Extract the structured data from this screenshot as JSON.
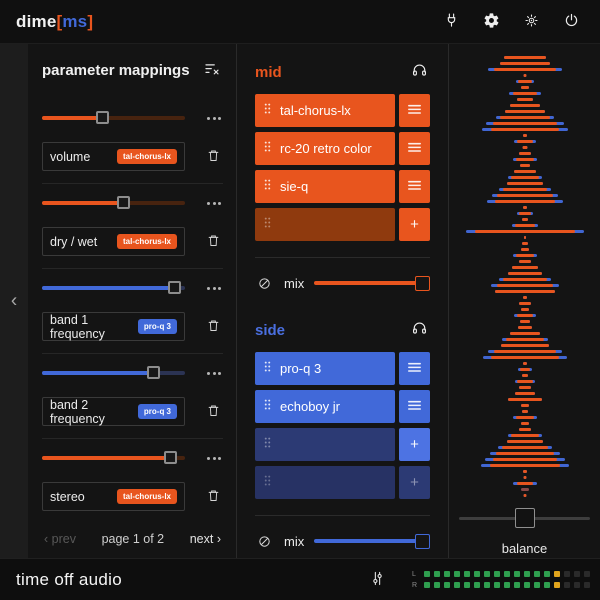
{
  "titlebar": {
    "brand_dime": "dime",
    "brand_bracket_open": "[",
    "brand_ms": "ms",
    "brand_bracket_close": "]",
    "icons": [
      "plug-icon",
      "settings-gear-icon",
      "brightness-icon",
      "power-icon"
    ]
  },
  "left_panel": {
    "title": "parameter mappings",
    "clear_icon": "clear-mappings-icon",
    "rows": [
      {
        "label": "volume",
        "badge": "tal-chorus-lx",
        "accent": "orange",
        "value_pct": 43
      },
      {
        "label": "dry / wet",
        "badge": "tal-chorus-lx",
        "accent": "orange",
        "value_pct": 57
      },
      {
        "label": "band 1 frequency",
        "badge": "pro-q 3",
        "accent": "blue",
        "value_pct": 93
      },
      {
        "label": "band 2 frequency",
        "badge": "pro-q 3",
        "accent": "blue",
        "value_pct": 78
      },
      {
        "label": "stereo",
        "badge": "tal-chorus-lx",
        "accent": "orange",
        "value_pct": 90
      }
    ],
    "pagination": {
      "prev_label": "prev",
      "page_label": "page 1 of 2",
      "next_label": "next"
    }
  },
  "mid_section": {
    "title": "mid",
    "headphones_icon": "headphones-icon",
    "slots": [
      {
        "label": "tal-chorus-lx",
        "filled": true
      },
      {
        "label": "rc-20 retro color",
        "filled": true
      },
      {
        "label": "sie-q",
        "filled": true
      },
      {
        "label": "",
        "filled": false,
        "plus_active": true
      }
    ],
    "mix": {
      "label": "mix",
      "value_pct": 100
    }
  },
  "side_section": {
    "title": "side",
    "headphones_icon": "headphones-icon",
    "slots": [
      {
        "label": "pro-q 3",
        "filled": true
      },
      {
        "label": "echoboy jr",
        "filled": true
      },
      {
        "label": "",
        "filled": false,
        "plus_active": true
      },
      {
        "label": "",
        "filled": false,
        "plus_active": false
      }
    ],
    "mix": {
      "label": "mix",
      "value_pct": 100
    }
  },
  "analyzer": {
    "balance_label": "balance",
    "balance_pct": 50,
    "bars": [
      [
        42,
        42
      ],
      [
        50,
        50
      ],
      [
        62,
        74
      ],
      [
        3,
        3
      ],
      [
        14,
        18
      ],
      [
        8,
        8
      ],
      [
        24,
        32
      ],
      [
        16,
        16
      ],
      [
        30,
        30
      ],
      [
        40,
        40
      ],
      [
        50,
        58
      ],
      [
        64,
        78
      ],
      [
        68,
        86
      ],
      [
        4,
        4
      ],
      [
        16,
        22
      ],
      [
        5,
        5
      ],
      [
        12,
        12
      ],
      [
        18,
        24
      ],
      [
        10,
        10
      ],
      [
        22,
        22
      ],
      [
        28,
        34
      ],
      [
        36,
        36
      ],
      [
        44,
        52
      ],
      [
        56,
        66
      ],
      [
        60,
        76
      ],
      [
        4,
        4
      ],
      [
        12,
        16
      ],
      [
        6,
        6
      ],
      [
        20,
        26
      ],
      [
        100,
        118
      ],
      [
        2,
        2
      ],
      [
        6,
        6
      ],
      [
        8,
        8
      ],
      [
        18,
        24
      ],
      [
        12,
        12
      ],
      [
        26,
        26
      ],
      [
        34,
        34
      ],
      [
        44,
        52
      ],
      [
        56,
        68
      ],
      [
        60,
        60
      ],
      [
        4,
        4
      ],
      [
        12,
        12
      ],
      [
        8,
        8
      ],
      [
        16,
        22
      ],
      [
        10,
        10
      ],
      [
        14,
        14
      ],
      [
        30,
        30
      ],
      [
        38,
        46
      ],
      [
        48,
        48
      ],
      [
        62,
        74
      ],
      [
        68,
        84
      ],
      [
        4,
        4
      ],
      [
        10,
        14
      ],
      [
        6,
        6
      ],
      [
        16,
        20
      ],
      [
        12,
        12
      ],
      [
        20,
        20
      ],
      [
        34,
        34
      ],
      [
        8,
        8
      ],
      [
        6,
        6
      ],
      [
        18,
        24
      ],
      [
        8,
        8
      ],
      [
        12,
        12
      ],
      [
        28,
        34
      ],
      [
        36,
        36
      ],
      [
        46,
        54
      ],
      [
        58,
        70
      ],
      [
        64,
        80
      ],
      [
        70,
        88
      ],
      [
        4,
        4
      ],
      [
        3,
        3
      ],
      [
        16,
        24
      ],
      [
        8,
        8,
        1
      ],
      [
        3,
        3
      ]
    ]
  },
  "footer": {
    "brand": "time off audio",
    "tune_icon": "tune-sliders-icon",
    "meter": {
      "channels": [
        "L",
        "R"
      ],
      "segments_total": 17,
      "segments_green": 13,
      "segments_yellow": 1
    }
  },
  "colors": {
    "orange": "#e8551e",
    "orange_track": "#47230f",
    "orange_empty": "#8f3a0e",
    "blue": "#4169d9",
    "blue_track": "#2b3353",
    "blue_empty": "#2c3a74",
    "blue_empty_dim": "#273264",
    "blue_plus": "#4d73e3",
    "vis_orange": "#e8551e",
    "vis_blue": "#4166d2",
    "meter_green": "#2f9e4f",
    "meter_yellow": "#e2a51d",
    "meter_off": "#2a2a2a"
  }
}
